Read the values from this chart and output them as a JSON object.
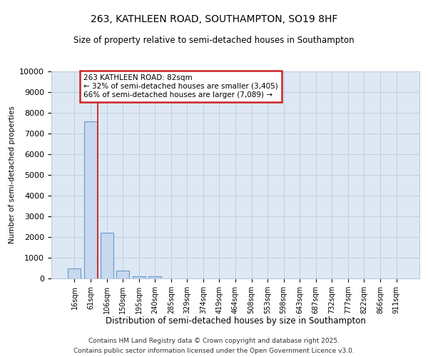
{
  "title_line1": "263, KATHLEEN ROAD, SOUTHAMPTON, SO19 8HF",
  "title_line2": "Size of property relative to semi-detached houses in Southampton",
  "xlabel": "Distribution of semi-detached houses by size in Southampton",
  "ylabel": "Number of semi-detached properties",
  "bar_labels": [
    "16sqm",
    "61sqm",
    "106sqm",
    "150sqm",
    "195sqm",
    "240sqm",
    "285sqm",
    "329sqm",
    "374sqm",
    "419sqm",
    "464sqm",
    "508sqm",
    "553sqm",
    "598sqm",
    "643sqm",
    "687sqm",
    "732sqm",
    "777sqm",
    "822sqm",
    "866sqm",
    "911sqm"
  ],
  "bar_values": [
    500,
    7600,
    2200,
    380,
    100,
    100,
    0,
    0,
    0,
    0,
    0,
    0,
    0,
    0,
    0,
    0,
    0,
    0,
    0,
    0,
    0
  ],
  "bar_color": "#c8d8ee",
  "bar_edge_color": "#6699cc",
  "bar_edge_width": 0.8,
  "vline_color": "#cc2222",
  "annotation_line1": "263 KATHLEEN ROAD: 82sqm",
  "annotation_line2": "← 32% of semi-detached houses are smaller (3,405)",
  "annotation_line3": "66% of semi-detached houses are larger (7,089) →",
  "annotation_box_color": "#ffffff",
  "annotation_box_edge": "#cc2222",
  "ylim": [
    0,
    10000
  ],
  "yticks": [
    0,
    1000,
    2000,
    3000,
    4000,
    5000,
    6000,
    7000,
    8000,
    9000,
    10000
  ],
  "grid_color": "#bbccdd",
  "bg_color": "#dde8f4",
  "footer_line1": "Contains HM Land Registry data © Crown copyright and database right 2025.",
  "footer_line2": "Contains public sector information licensed under the Open Government Licence v3.0."
}
